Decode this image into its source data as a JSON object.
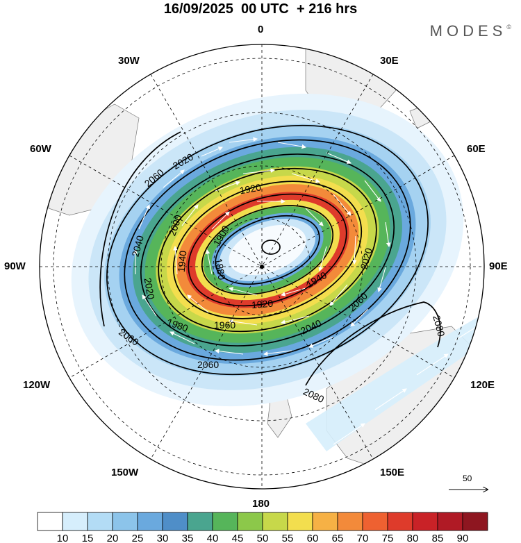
{
  "title": "16/09/2025  00 UTC  + 216 hrs",
  "logo": "MODES",
  "logo_mark": "©",
  "longitude_labels": {
    "lon_0": "0",
    "lon_30e": "30E",
    "lon_60e": "60E",
    "lon_90e": "90E",
    "lon_120e": "120E",
    "lon_150e": "150E",
    "lon_180": "180",
    "lon_150w": "150W",
    "lon_120w": "120W",
    "lon_90w": "90W",
    "lon_60w": "60W",
    "lon_30w": "30W"
  },
  "contour_labels": [
    "2060",
    "2020",
    "1920",
    "1900",
    "2000",
    "2040",
    "1940",
    "1880",
    "2020",
    "2020",
    "1940",
    "1920",
    "1980",
    "1960",
    "2060",
    "2040",
    "2060",
    "2060",
    "2080",
    "2080"
  ],
  "vector_scale": {
    "label": "50"
  },
  "colorbar": {
    "ticks": [
      "10",
      "15",
      "20",
      "25",
      "30",
      "35",
      "40",
      "45",
      "50",
      "55",
      "60",
      "65",
      "70",
      "75",
      "80",
      "85",
      "90"
    ],
    "colors": [
      "#ffffff",
      "#d6eefc",
      "#b3dcf5",
      "#8cc4ea",
      "#6aa9de",
      "#4f8ec8",
      "#4aa58f",
      "#56b55a",
      "#8cc84a",
      "#c7d84a",
      "#f3de4e",
      "#f6b145",
      "#f38a3a",
      "#ee6131",
      "#de3b2b",
      "#c92227",
      "#b01a25",
      "#8e1620"
    ]
  }
}
